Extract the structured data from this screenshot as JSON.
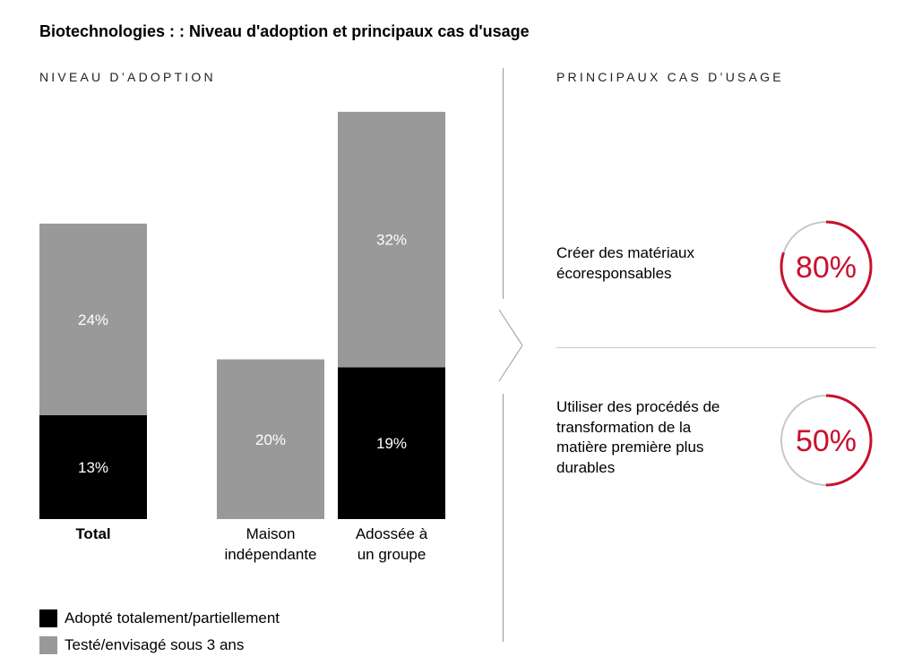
{
  "title": "Biotechnologies : : Niveau d'adoption et principaux cas d'usage",
  "left_section_label": "NIVEAU D’ADOPTION",
  "right_section_label": "PRINCIPAUX CAS D’USAGE",
  "colors": {
    "adopted": "#000000",
    "tested": "#999999",
    "accent_red": "#c8102e",
    "ring_gray": "#c8c8c8"
  },
  "chart_data": {
    "type": "bar",
    "stacked": true,
    "categories": [
      "Total",
      "Maison indépendante",
      "Adossée à un groupe"
    ],
    "category_label_lines": [
      [
        "Total"
      ],
      [
        "Maison",
        "indépendante"
      ],
      [
        "Adossée à",
        "un groupe"
      ]
    ],
    "series": [
      {
        "name": "Adopté totalement/partiellement",
        "values": [
          13,
          0,
          19
        ]
      },
      {
        "name": "Testé/envisagé sous 3 ans",
        "values": [
          24,
          20,
          32
        ]
      }
    ],
    "data_labels": [
      [
        "13%",
        "",
        "19%"
      ],
      [
        "24%",
        "20%",
        "32%"
      ]
    ],
    "ylim": [
      0,
      52
    ],
    "grid": false,
    "legend_position": "bottom-left"
  },
  "legend": {
    "adopted_label": "Adopté totalement/partiellement",
    "tested_label": "Testé/envisagé sous 3 ans"
  },
  "use_cases": [
    {
      "text": "Créer des matériaux écoresponsables",
      "value": 80,
      "label": "80%"
    },
    {
      "text": "Utiliser des procédés de transformation de la matière première plus durables",
      "value": 50,
      "label": "50%"
    }
  ]
}
